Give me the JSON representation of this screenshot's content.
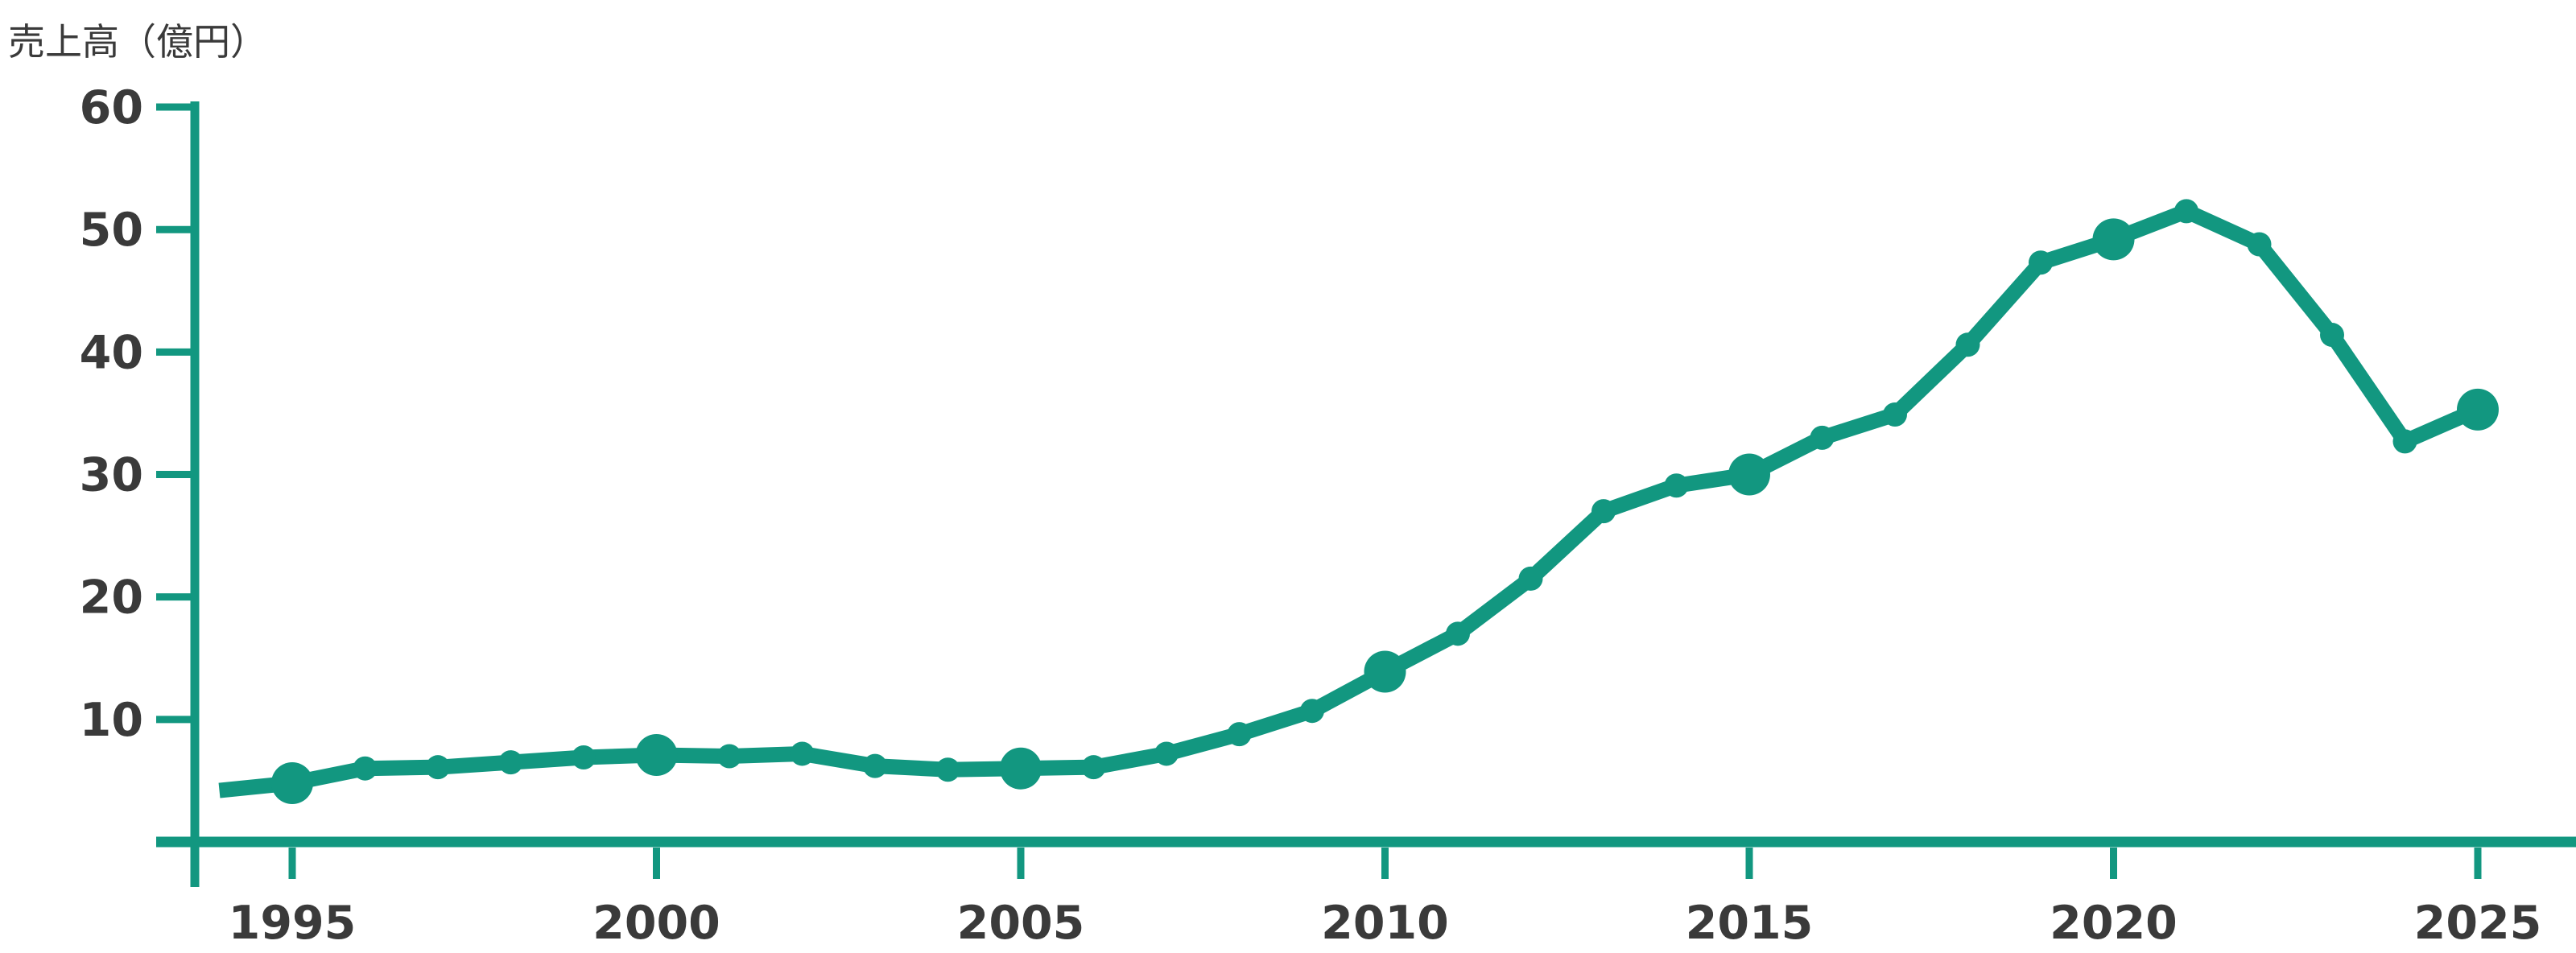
{
  "chart_data": {
    "type": "line",
    "title": "売上高（億円）",
    "ylabel": "売上高（億円）",
    "xlabel": "",
    "x": [
      1994,
      1995,
      1996,
      1997,
      1998,
      1999,
      2000,
      2001,
      2002,
      2003,
      2004,
      2005,
      2006,
      2007,
      2008,
      2009,
      2010,
      2011,
      2012,
      2013,
      2014,
      2015,
      2016,
      2017,
      2018,
      2019,
      2020,
      2021,
      2022,
      2023,
      2024,
      2025
    ],
    "values": [
      4.2,
      4.8,
      6.0,
      6.1,
      6.5,
      6.9,
      7.1,
      7.0,
      7.2,
      6.2,
      5.9,
      6.0,
      6.1,
      7.2,
      8.8,
      10.7,
      13.9,
      17.0,
      21.5,
      27.0,
      29.1,
      30.0,
      33.0,
      34.9,
      40.6,
      47.3,
      49.2,
      51.5,
      48.8,
      41.4,
      32.7,
      35.3
    ],
    "series_name": "売上高",
    "marker_years_large": [
      1995,
      2000,
      2005,
      2010,
      2015,
      2020,
      2025
    ],
    "no_marker_years": [
      1994
    ],
    "y_ticks": [
      10,
      20,
      30,
      40,
      50,
      60
    ],
    "x_tick_years": [
      1995,
      2000,
      2005,
      2010,
      2015,
      2020,
      2025
    ],
    "x_tick_labels": [
      "1995",
      "2000",
      "2005",
      "2010",
      "2015",
      "2020",
      "2025"
    ],
    "ylim": [
      0,
      60
    ],
    "xlim": [
      1993,
      2026
    ],
    "grid": false,
    "legend": "none",
    "line_color": "#129780",
    "axis_color": "#129780",
    "label_color": "#3a3a3a"
  }
}
